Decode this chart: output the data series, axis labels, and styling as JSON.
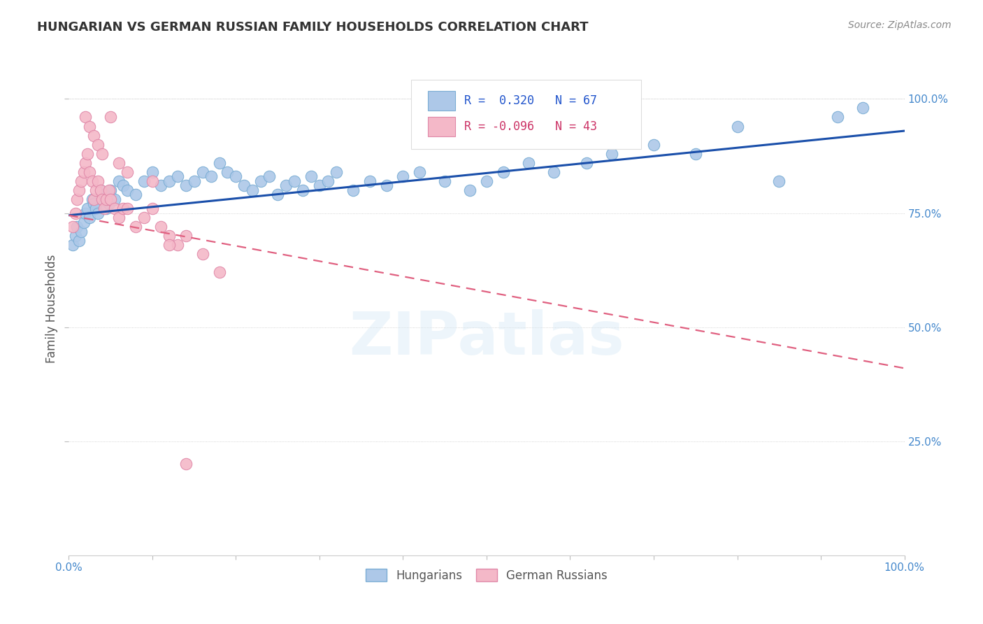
{
  "title": "HUNGARIAN VS GERMAN RUSSIAN FAMILY HOUSEHOLDS CORRELATION CHART",
  "source": "Source: ZipAtlas.com",
  "ylabel": "Family Households",
  "watermark": "ZIPatlas",
  "legend_entries": [
    {
      "label": "Hungarians",
      "color": "#adc8e8",
      "edge": "#7aadd4",
      "R": 0.32,
      "N": 67
    },
    {
      "label": "German Russians",
      "color": "#f4b8c8",
      "edge": "#e088a8",
      "R": -0.096,
      "N": 43
    }
  ],
  "hungarian_x": [
    0.005,
    0.008,
    0.01,
    0.012,
    0.015,
    0.018,
    0.02,
    0.022,
    0.025,
    0.028,
    0.03,
    0.032,
    0.035,
    0.038,
    0.04,
    0.042,
    0.045,
    0.048,
    0.05,
    0.055,
    0.06,
    0.065,
    0.07,
    0.08,
    0.09,
    0.1,
    0.11,
    0.12,
    0.13,
    0.14,
    0.15,
    0.16,
    0.17,
    0.18,
    0.19,
    0.2,
    0.21,
    0.22,
    0.23,
    0.24,
    0.25,
    0.26,
    0.27,
    0.28,
    0.29,
    0.3,
    0.31,
    0.32,
    0.34,
    0.36,
    0.38,
    0.4,
    0.42,
    0.45,
    0.48,
    0.5,
    0.52,
    0.55,
    0.58,
    0.62,
    0.65,
    0.7,
    0.75,
    0.8,
    0.85,
    0.92,
    0.95
  ],
  "hungarian_y": [
    0.68,
    0.7,
    0.72,
    0.69,
    0.71,
    0.73,
    0.75,
    0.76,
    0.74,
    0.78,
    0.77,
    0.76,
    0.75,
    0.8,
    0.78,
    0.79,
    0.76,
    0.77,
    0.8,
    0.78,
    0.82,
    0.81,
    0.8,
    0.79,
    0.82,
    0.84,
    0.81,
    0.82,
    0.83,
    0.81,
    0.82,
    0.84,
    0.83,
    0.86,
    0.84,
    0.83,
    0.81,
    0.8,
    0.82,
    0.83,
    0.79,
    0.81,
    0.82,
    0.8,
    0.83,
    0.81,
    0.82,
    0.84,
    0.8,
    0.82,
    0.81,
    0.83,
    0.84,
    0.82,
    0.8,
    0.82,
    0.84,
    0.86,
    0.84,
    0.86,
    0.88,
    0.9,
    0.88,
    0.94,
    0.82,
    0.96,
    0.98
  ],
  "german_x": [
    0.005,
    0.008,
    0.01,
    0.012,
    0.015,
    0.018,
    0.02,
    0.022,
    0.025,
    0.028,
    0.03,
    0.032,
    0.035,
    0.038,
    0.04,
    0.042,
    0.045,
    0.048,
    0.05,
    0.055,
    0.06,
    0.065,
    0.07,
    0.08,
    0.09,
    0.1,
    0.11,
    0.12,
    0.13,
    0.14,
    0.16,
    0.18,
    0.02,
    0.025,
    0.03,
    0.035,
    0.04,
    0.05,
    0.06,
    0.07,
    0.1,
    0.12,
    0.14
  ],
  "german_y": [
    0.72,
    0.75,
    0.78,
    0.8,
    0.82,
    0.84,
    0.86,
    0.88,
    0.84,
    0.82,
    0.78,
    0.8,
    0.82,
    0.8,
    0.78,
    0.76,
    0.78,
    0.8,
    0.78,
    0.76,
    0.74,
    0.76,
    0.76,
    0.72,
    0.74,
    0.76,
    0.72,
    0.7,
    0.68,
    0.7,
    0.66,
    0.62,
    0.96,
    0.94,
    0.92,
    0.9,
    0.88,
    0.96,
    0.86,
    0.84,
    0.82,
    0.68,
    0.2
  ],
  "xlim": [
    0.0,
    1.0
  ],
  "ylim": [
    0.0,
    1.08
  ],
  "ytick_vals": [
    0.25,
    0.5,
    0.75,
    1.0
  ],
  "right_yticklabels": [
    "25.0%",
    "50.0%",
    "75.0%",
    "100.0%"
  ],
  "hungarian_color": "#adc8e8",
  "hungarian_edge": "#7aadd4",
  "german_color": "#f4b8c8",
  "german_edge": "#e088a8",
  "trend_hungarian_color": "#1a4faa",
  "trend_german_color": "#e06080",
  "background_color": "#ffffff",
  "grid_color": "#c8c8c8",
  "title_color": "#333333",
  "source_color": "#888888",
  "ylabel_color": "#555555",
  "tick_color": "#4488cc"
}
